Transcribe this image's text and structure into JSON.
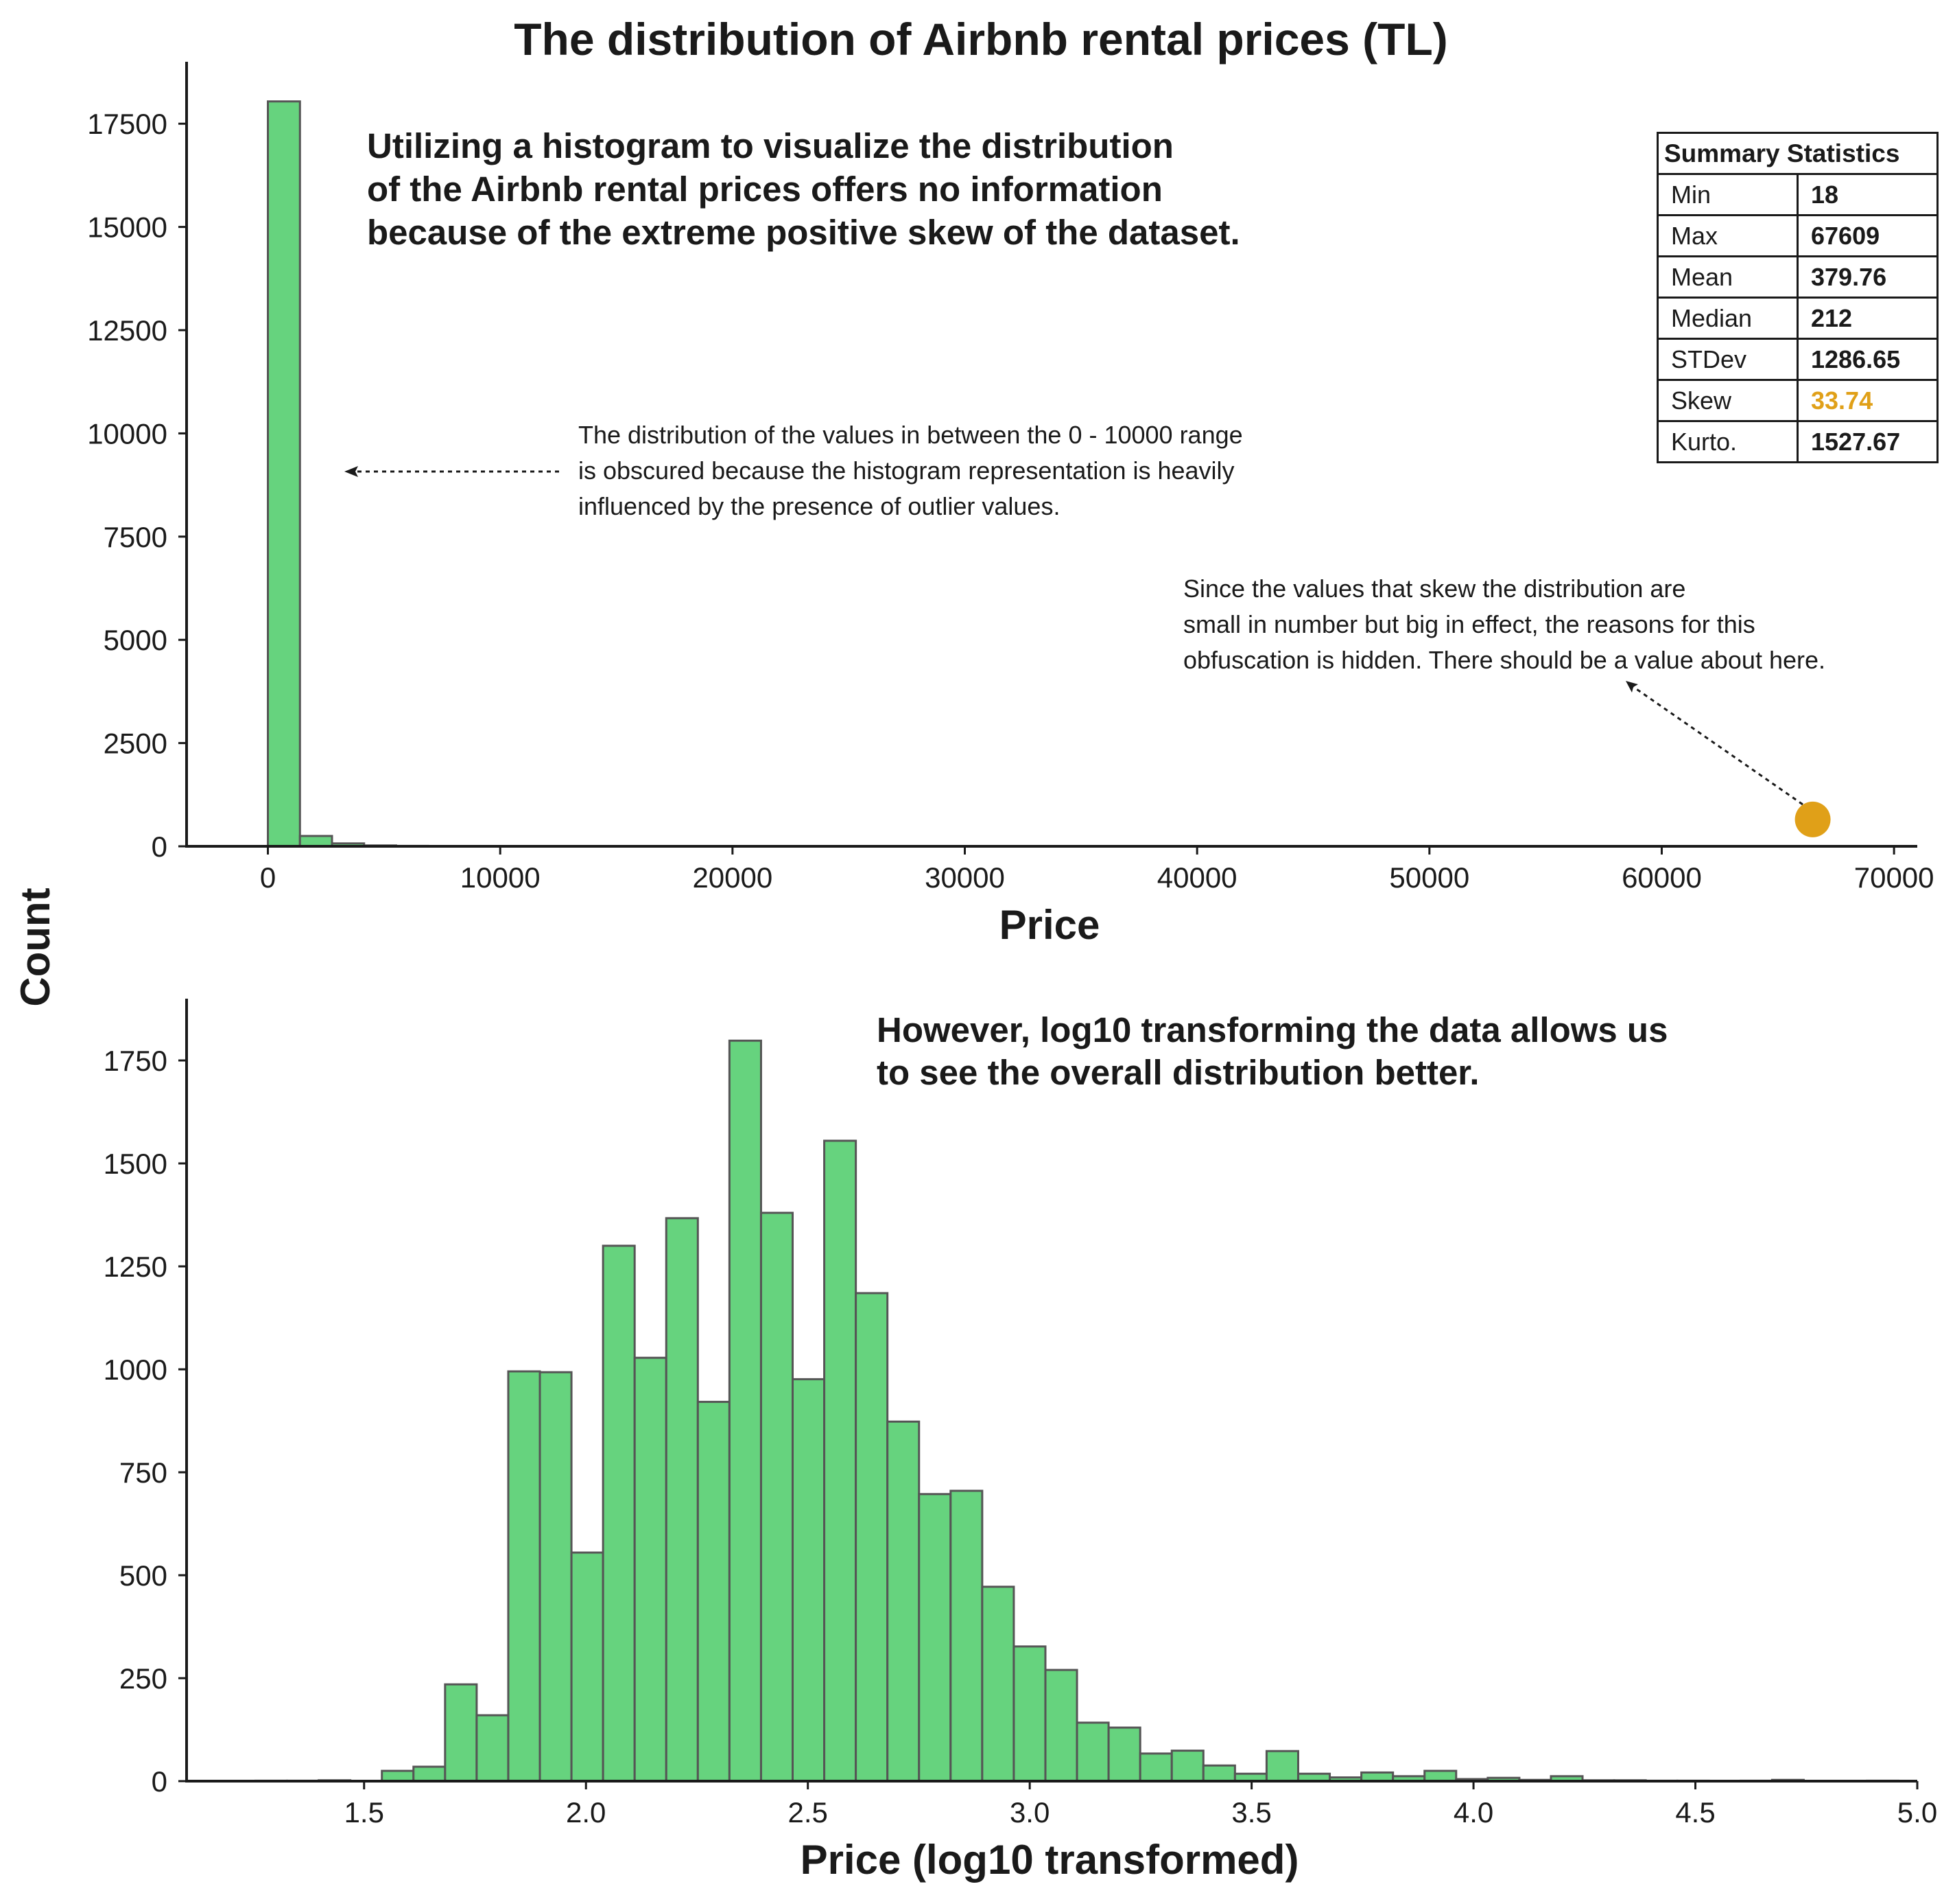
{
  "chart_data": [
    {
      "type": "bar",
      "title": "The distribution of Airbnb rental prices (TL)",
      "xlabel": "Price",
      "ylabel": "Count",
      "xlim": [
        -3500,
        71000
      ],
      "ylim": [
        0,
        19000
      ],
      "x_ticks": [
        0,
        10000,
        20000,
        30000,
        40000,
        50000,
        60000,
        70000
      ],
      "y_ticks": [
        0,
        2500,
        5000,
        7500,
        10000,
        12500,
        15000,
        17500
      ],
      "bin_width": 1380,
      "bins": [
        {
          "x": 0,
          "count": 18040
        },
        {
          "x": 1380,
          "count": 250
        },
        {
          "x": 2760,
          "count": 70
        },
        {
          "x": 4140,
          "count": 20
        },
        {
          "x": 5520,
          "count": 10
        }
      ],
      "highlight_point": {
        "x": 66500,
        "y": 650,
        "color": "#e0a018"
      },
      "annotations": [
        "Utilizing a histogram to visualize the distribution",
        "of the Airbnb rental prices offers no information",
        "because of the extreme positive skew of the dataset.",
        "The distribution of the values in between the 0 - 10000 range",
        "is obscured because the histogram representation is heavily",
        "influenced by the presence of outlier values.",
        "Since the values that skew the distribution are",
        "small in number but big in effect, the reasons for this",
        "obfuscation is hidden. There should be a value about here."
      ],
      "summary_table": {
        "header": "Summary Statistics",
        "rows": [
          {
            "label": "Min",
            "value": "18"
          },
          {
            "label": "Max",
            "value": "67609"
          },
          {
            "label": "Mean",
            "value": "379.76"
          },
          {
            "label": "Median",
            "value": "212"
          },
          {
            "label": "STDev",
            "value": "1286.65"
          },
          {
            "label": "Skew",
            "value": "33.74",
            "color": "#e0a018"
          },
          {
            "label": "Kurto.",
            "value": "1527.67"
          }
        ]
      }
    },
    {
      "type": "bar",
      "xlabel": "Price (log10 transformed)",
      "ylabel": "Count",
      "xlim": [
        1.1,
        5.0
      ],
      "ylim": [
        0,
        1900
      ],
      "x_ticks": [
        "1.5",
        "2.0",
        "2.5",
        "3.0",
        "3.5",
        "4.0",
        "4.5",
        "5.0"
      ],
      "y_ticks": [
        0,
        250,
        500,
        750,
        1000,
        1250,
        1500,
        1750
      ],
      "bin_start": 1.2553,
      "bin_width": 0.0712,
      "counts": [
        1,
        1,
        2,
        0,
        25,
        35,
        235,
        160,
        995,
        993,
        555,
        1300,
        1028,
        1367,
        921,
        1798,
        1380,
        976,
        1555,
        1185,
        873,
        697,
        705,
        472,
        327,
        270,
        142,
        130,
        67,
        74,
        38,
        18,
        73,
        18,
        9,
        21,
        12,
        25,
        5,
        8,
        3,
        12,
        2,
        2,
        1,
        1,
        0,
        1,
        3,
        0,
        0,
        1
      ],
      "annotations": [
        "However, log10 transforming the data allows us",
        "to see the overall distribution better."
      ]
    }
  ]
}
